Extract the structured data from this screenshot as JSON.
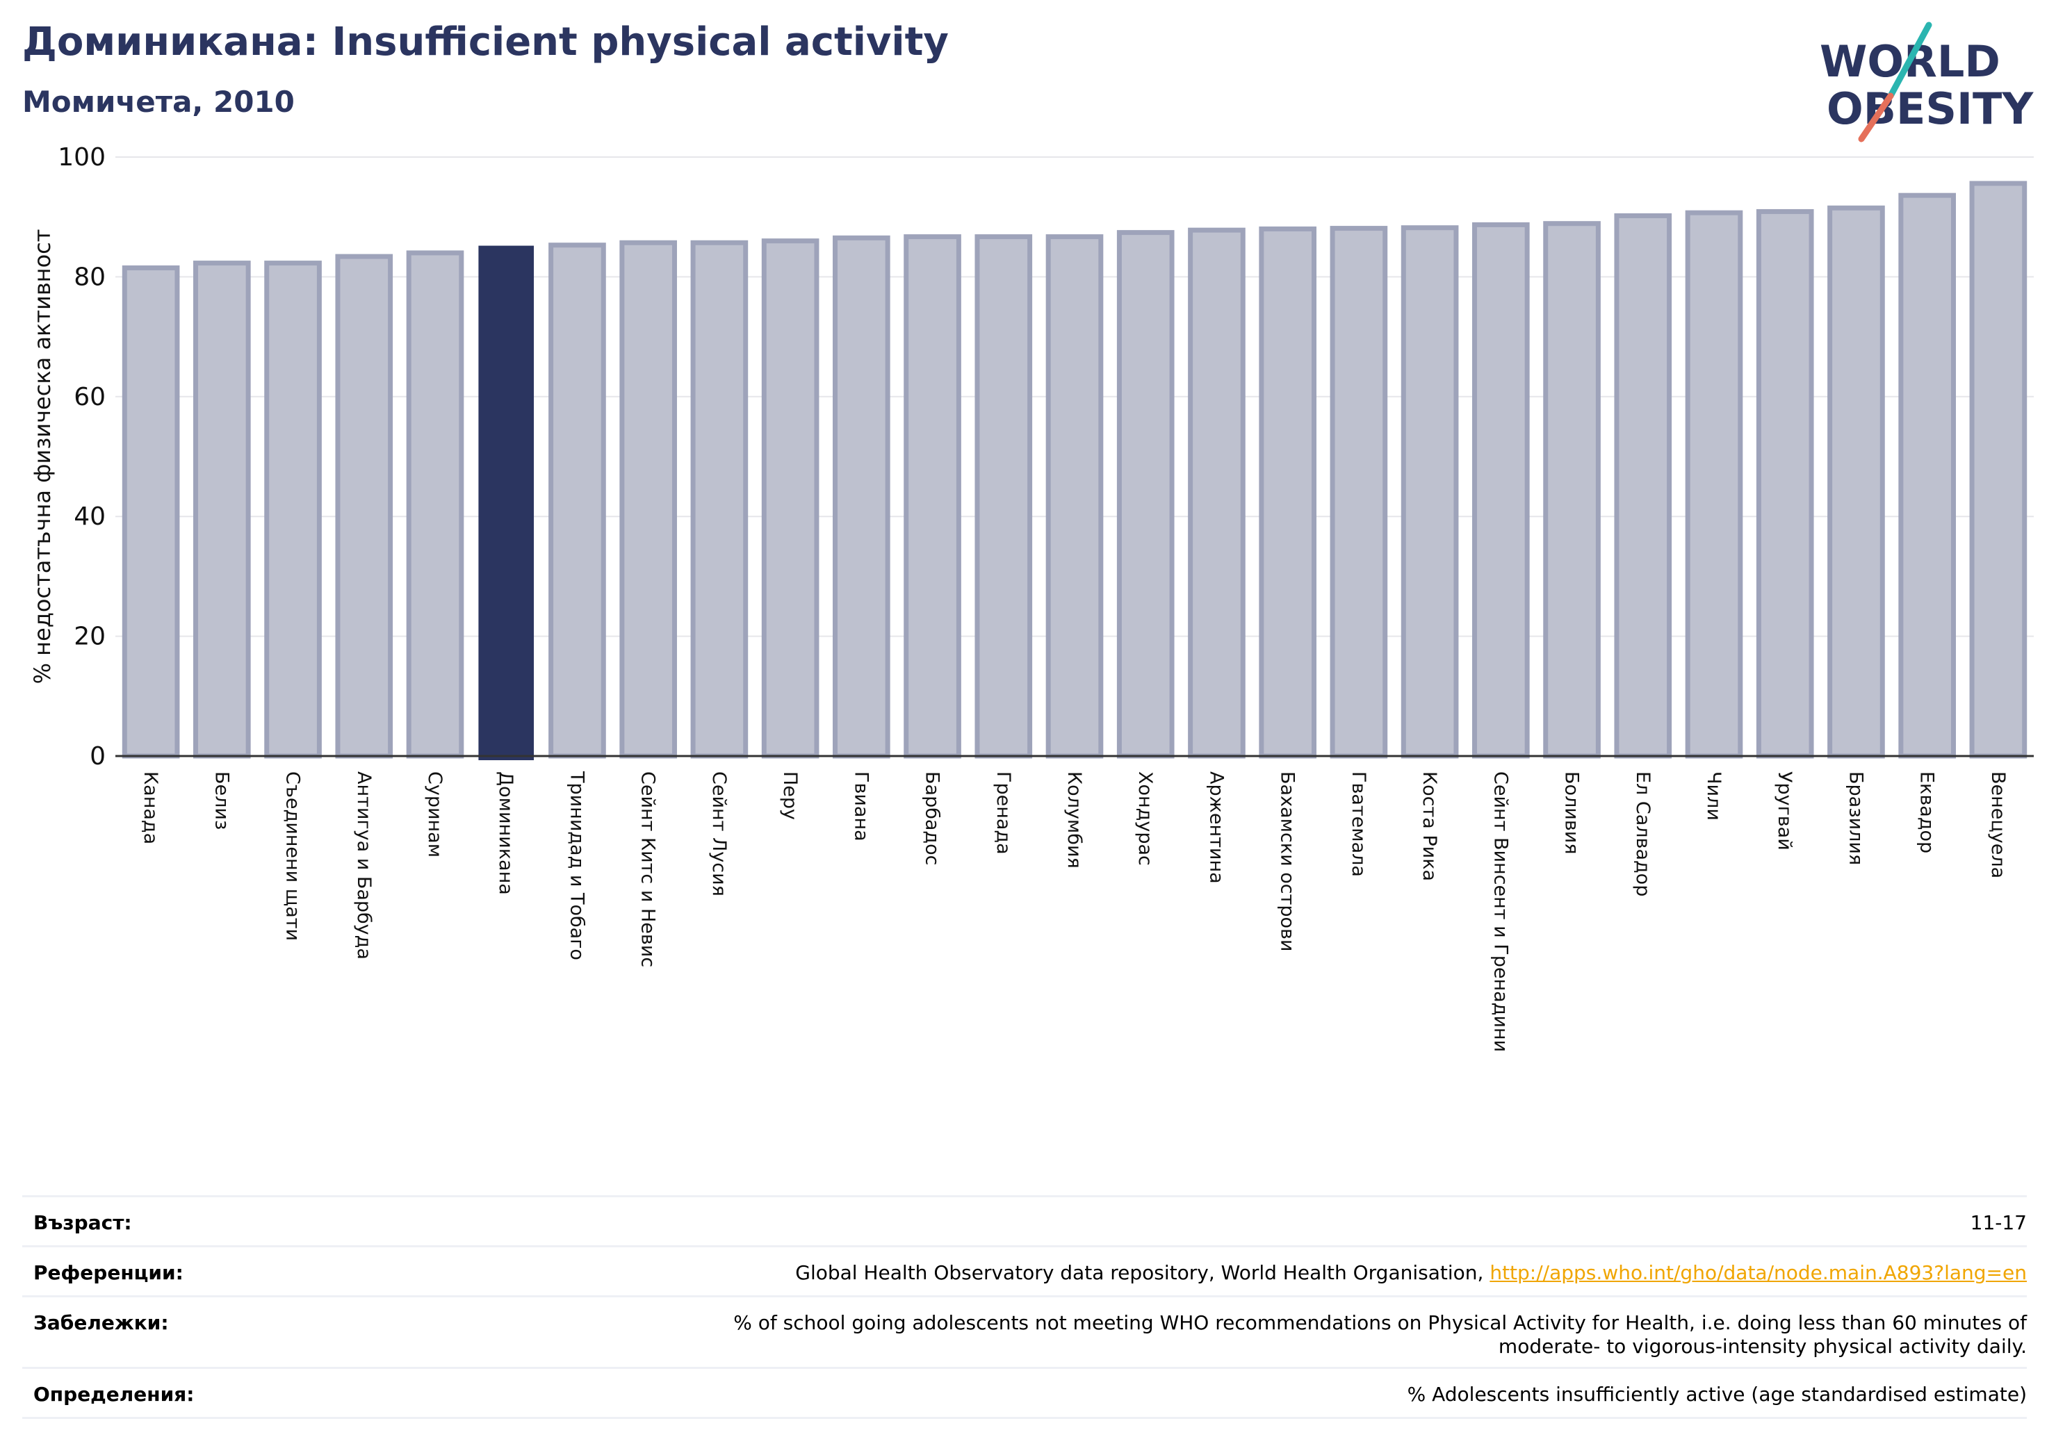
{
  "header": {
    "title": "Доминикана: Insufficient physical activity",
    "subtitle": "Момичета, 2010"
  },
  "logo": {
    "line1": "WORLD",
    "line2": "OBESITY"
  },
  "colors": {
    "title": "#2b3560",
    "highlight_bar": "#2b3560",
    "other_bar_fill": "#bec1cf",
    "other_bar_edge": "#9ea3ba",
    "link": "#f0a500",
    "logo_teal": "#2bb5b0",
    "logo_coral": "#e5705a"
  },
  "chart_data": {
    "type": "bar",
    "ylabel": "% недостатъчна физическа активност",
    "ylim": [
      0,
      100
    ],
    "yticks": [
      0,
      20,
      40,
      60,
      80,
      100
    ],
    "grid": true,
    "highlight": "Доминикана",
    "categories": [
      "Канада",
      "Белиз",
      "Съединени щати",
      "Антигуа и Барбуда",
      "Суринам",
      "Доминикана",
      "Тринидад и Тобаго",
      "Сейнт Китс и Невис",
      "Сейнт Лусия",
      "Перу",
      "Гвиана",
      "Барбадос",
      "Гренада",
      "Колумбия",
      "Хондурас",
      "Аржентина",
      "Бахамски острови",
      "Гватемала",
      "Коста Рика",
      "Сейнт Винсент и Гренадини",
      "Боливия",
      "Ел Салвадор",
      "Чили",
      "Уругвай",
      "Бразилия",
      "Еквадор",
      "Венецуела"
    ],
    "values": [
      81.5,
      82.3,
      82.3,
      83.4,
      84.0,
      85.2,
      85.3,
      85.7,
      85.7,
      86.0,
      86.5,
      86.7,
      86.7,
      86.7,
      87.4,
      87.8,
      88.0,
      88.1,
      88.2,
      88.7,
      88.9,
      90.2,
      90.7,
      90.9,
      91.5,
      93.6,
      95.6
    ]
  },
  "meta": [
    {
      "label": "Възраст:",
      "value": "11-17"
    },
    {
      "label": "Референции:",
      "value": "Global Health Observatory data repository, World Health Organisation, ",
      "link": "http://apps.who.int/gho/data/node.main.A893?lang=en"
    },
    {
      "label": "Забележки:",
      "value_line1": "% of school going adolescents not meeting WHO recommendations on Physical Activity for Health, i.e. doing less than 60 minutes of",
      "value_line2": "moderate- to vigorous-intensity physical activity daily."
    },
    {
      "label": "Определения:",
      "value": "% Adolescents insufficiently active (age standardised estimate)"
    }
  ]
}
